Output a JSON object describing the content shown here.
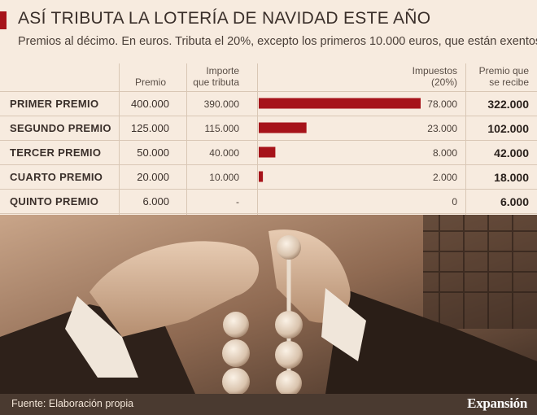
{
  "header": {
    "title": "ASÍ TRIBUTA LA LOTERÍA DE NAVIDAD ESTE AÑO",
    "subtitle": "Premios al décimo. En euros. Tributa el 20%, excepto los primeros 10.000 euros, que están exentos"
  },
  "columns": {
    "premio": "Premio",
    "importe_line1": "Importe",
    "importe_line2": "que tributa",
    "impuestos_line1": "Impuestos",
    "impuestos_line2": "(20%)",
    "recibe_line1": "Premio que",
    "recibe_line2": "se recibe"
  },
  "rows": [
    {
      "label": "PRIMER PREMIO",
      "premio": "400.000",
      "importe": "390.000",
      "impuestos": "78.000",
      "recibe": "322.000"
    },
    {
      "label": "SEGUNDO PREMIO",
      "premio": "125.000",
      "importe": "115.000",
      "impuestos": "23.000",
      "recibe": "102.000"
    },
    {
      "label": "TERCER PREMIO",
      "premio": "50.000",
      "importe": "40.000",
      "impuestos": "8.000",
      "recibe": "42.000"
    },
    {
      "label": "CUARTO PREMIO",
      "premio": "20.000",
      "importe": "10.000",
      "impuestos": "2.000",
      "recibe": "18.000"
    },
    {
      "label": "QUINTO PREMIO",
      "premio": "6.000",
      "importe": "-",
      "impuestos": "0",
      "recibe": "6.000"
    }
  ],
  "chart_data": {
    "type": "bar",
    "categories": [
      "PRIMER PREMIO",
      "SEGUNDO PREMIO",
      "TERCER PREMIO",
      "CUARTO PREMIO",
      "QUINTO PREMIO"
    ],
    "values": [
      78000,
      23000,
      8000,
      2000,
      0
    ],
    "xlim": [
      0,
      78000
    ],
    "orientation": "horizontal",
    "bar_color": "#a6131a"
  },
  "footer": {
    "source": "Fuente: Elaboración propia",
    "brand": "Expansión"
  },
  "colors": {
    "accent": "#a6131a",
    "background": "#f7ebdf",
    "footer": "#4a3a30"
  }
}
